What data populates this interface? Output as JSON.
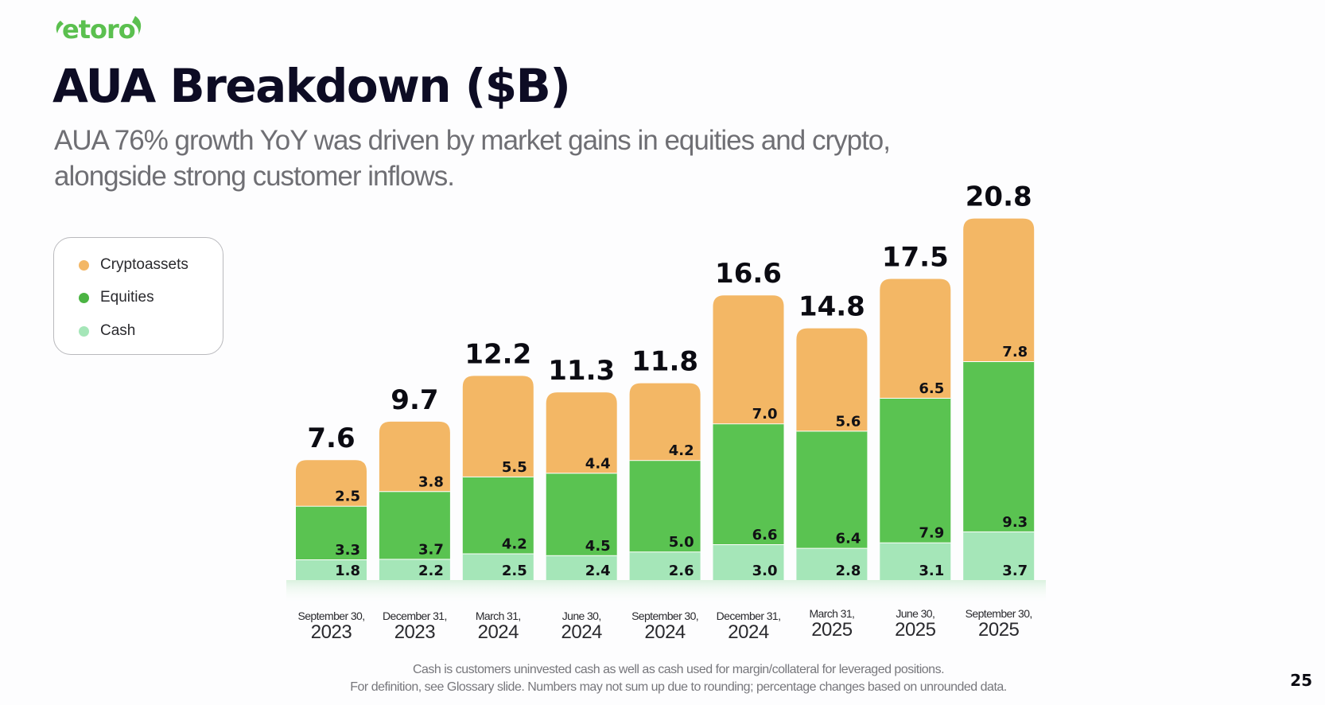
{
  "brand": {
    "logo_text": "etoro",
    "color": "#5bc04f"
  },
  "header": {
    "title": "AUA Breakdown ($B)",
    "subtitle_lines": [
      "AUA 76% growth YoY was driven by market gains in equities and crypto,",
      "alongside strong customer inflows."
    ]
  },
  "legend": {
    "items": [
      {
        "label": "Cryptoassets",
        "color": "#f3b765"
      },
      {
        "label": "Equities",
        "color": "#4bb443"
      },
      {
        "label": "Cash",
        "color": "#a5e6b8"
      }
    ]
  },
  "footnotes": [
    "Cash is customers uninvested cash as well as cash used for margin/collateral for leveraged positions.",
    "For definition, see Glossary slide. Numbers may not sum up due to rounding; percentage changes based on unrounded data."
  ],
  "page_number": "25",
  "chart_data": {
    "type": "bar",
    "stacked": true,
    "title": "AUA Breakdown ($B)",
    "xlabel": "",
    "ylabel": "",
    "grid": false,
    "legend_position": "left",
    "categories": [
      {
        "month": "September 30,",
        "year": "2023"
      },
      {
        "month": "December 31,",
        "year": "2023"
      },
      {
        "month": "March 31,",
        "year": "2024"
      },
      {
        "month": "June 30,",
        "year": "2024"
      },
      {
        "month": "September 30,",
        "year": "2024"
      },
      {
        "month": "December 31,",
        "year": "2024"
      },
      {
        "month": "March 31,",
        "year": "2025"
      },
      {
        "month": "June 30,",
        "year": "2025"
      },
      {
        "month": "September 30,",
        "year": "2025"
      }
    ],
    "series": [
      {
        "name": "Cash",
        "color": "#a5e6b8",
        "values": [
          1.8,
          2.2,
          2.5,
          2.4,
          2.6,
          3.0,
          2.8,
          3.1,
          3.7
        ]
      },
      {
        "name": "Equities",
        "color": "#5ac351",
        "values": [
          3.3,
          3.7,
          4.2,
          4.5,
          5.0,
          6.6,
          6.4,
          7.9,
          9.3
        ]
      },
      {
        "name": "Cryptoassets",
        "color": "#f3b765",
        "values": [
          2.5,
          3.8,
          5.5,
          4.4,
          4.2,
          7.0,
          5.6,
          6.5,
          7.8
        ]
      }
    ],
    "totals": [
      "7.6",
      "9.7",
      "12.2",
      "11.3",
      "11.8",
      "16.6",
      "14.8",
      "17.5",
      "20.8"
    ],
    "total_values": [
      7.6,
      9.7,
      12.2,
      11.3,
      11.8,
      16.6,
      14.8,
      17.5,
      20.8
    ]
  }
}
